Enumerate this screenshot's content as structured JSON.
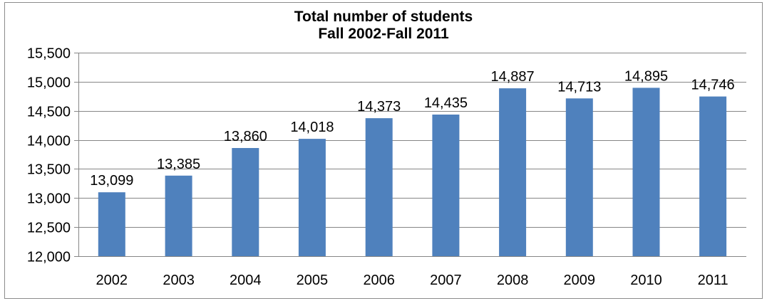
{
  "chart_data": {
    "type": "bar",
    "title_line1": "Total number of students",
    "title_line2": "Fall 2002-Fall 2011",
    "categories": [
      "2002",
      "2003",
      "2004",
      "2005",
      "2006",
      "2007",
      "2008",
      "2009",
      "2010",
      "2011"
    ],
    "values": [
      13099,
      13385,
      13860,
      14018,
      14373,
      14435,
      14887,
      14713,
      14895,
      14746
    ],
    "value_labels": [
      "13,099",
      "13,385",
      "13,860",
      "14,018",
      "14,373",
      "14,435",
      "14,887",
      "14,713",
      "14,895",
      "14,746"
    ],
    "y_ticks": [
      12000,
      12500,
      13000,
      13500,
      14000,
      14500,
      15000,
      15500
    ],
    "y_tick_labels": [
      "12,000",
      "12,500",
      "13,000",
      "13,500",
      "14,000",
      "14,500",
      "15,000",
      "15,500"
    ],
    "ylim": [
      12000,
      15500
    ],
    "xlabel": "",
    "ylabel": "",
    "grid": true,
    "legend": "none",
    "colors": {
      "bar": "#4f81bd",
      "grid": "#868686",
      "frame": "#8c8c8c"
    }
  }
}
